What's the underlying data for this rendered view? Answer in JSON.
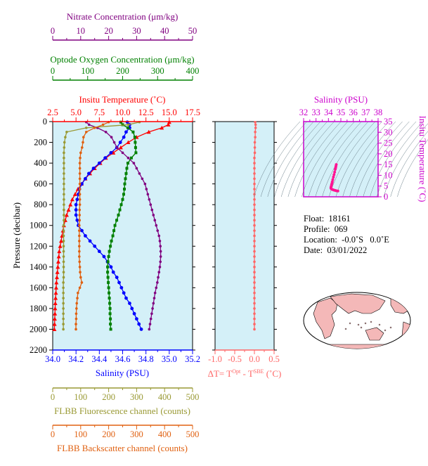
{
  "colors": {
    "temperature": "#ff0000",
    "salinity": "#0000ff",
    "oxygen": "#008000",
    "nitrate": "#800080",
    "fluorescence": "#999933",
    "backscatter": "#e06010",
    "delta_t": "#ff6666",
    "tsal_axis": "#cc00cc",
    "ts_points": "#ff1493",
    "plot_bg": "#d4f0f8",
    "land": "#f4b8b8"
  },
  "info": {
    "float_label": "Float:",
    "float_value": "18161",
    "profile_label": "Profile:",
    "profile_value": "069",
    "location_label": "Location:",
    "location_value": "-0.0˚S   0.0˚E",
    "date_label": "Date:",
    "date_value": "03/01/2022"
  },
  "chart_data": [
    {
      "type": "line",
      "panel": "main-profile",
      "ylabel": "Pressure (decibar)",
      "ylim": [
        2200,
        0
      ],
      "yticks": [
        "0",
        "200",
        "400",
        "600",
        "800",
        "1000",
        "1200",
        "1400",
        "1600",
        "1800",
        "2000",
        "2200"
      ],
      "y": [
        5,
        30,
        60,
        100,
        150,
        200,
        250,
        300,
        350,
        400,
        450,
        500,
        550,
        600,
        650,
        700,
        750,
        800,
        850,
        900,
        950,
        1000,
        1050,
        1100,
        1150,
        1200,
        1250,
        1300,
        1350,
        1400,
        1450,
        1500,
        1550,
        1600,
        1650,
        1700,
        1750,
        1800,
        1850,
        1900,
        1950,
        2000
      ],
      "axes": {
        "temperature": {
          "label": "Insitu Temperature (˚C)",
          "ticks": [
            "2.5",
            "5.0",
            "7.5",
            "10.0",
            "12.5",
            "15.0",
            "17.5"
          ],
          "range": [
            2.5,
            17.5
          ]
        },
        "salinity": {
          "label": "Salinity (PSU)",
          "ticks": [
            "34.0",
            "34.2",
            "34.4",
            "34.6",
            "34.8",
            "35.0",
            "35.2"
          ],
          "range": [
            34.0,
            35.2
          ]
        },
        "oxygen": {
          "label": "Optode Oxygen Concentration (μm/kg)",
          "ticks": [
            "0",
            "100",
            "200",
            "300",
            "400"
          ],
          "range": [
            0,
            400
          ]
        },
        "nitrate": {
          "label": "Nitrate Concentration (μm/kg)",
          "ticks": [
            "0",
            "10",
            "20",
            "30",
            "40",
            "50"
          ],
          "range": [
            0,
            50
          ]
        },
        "fluorescence": {
          "label": "FLBB Fluorescence channel (counts)",
          "ticks": [
            "0",
            "100",
            "200",
            "300",
            "400",
            "500"
          ],
          "range": [
            0,
            500
          ]
        },
        "backscatter": {
          "label": "FLBB Backscatter channel (counts)",
          "ticks": [
            "0",
            "100",
            "200",
            "300",
            "400",
            "500"
          ],
          "range": [
            0,
            500
          ]
        }
      },
      "series": [
        {
          "key": "temperature",
          "values": [
            15.0,
            14.9,
            14.2,
            12.8,
            11.5,
            10.6,
            9.8,
            9.0,
            8.2,
            7.6,
            7.0,
            6.5,
            6.0,
            5.6,
            5.2,
            4.9,
            4.6,
            4.4,
            4.2,
            4.0,
            3.85,
            3.7,
            3.6,
            3.5,
            3.4,
            3.3,
            3.2,
            3.15,
            3.1,
            3.05,
            3.0,
            2.95,
            2.9,
            2.87,
            2.84,
            2.81,
            2.78,
            2.76,
            2.74,
            2.72,
            2.7,
            2.68
          ]
        },
        {
          "key": "salinity",
          "values": [
            34.64,
            34.66,
            34.66,
            34.63,
            34.61,
            34.58,
            34.55,
            34.5,
            34.45,
            34.4,
            34.35,
            34.31,
            34.28,
            34.25,
            34.23,
            34.22,
            34.21,
            34.2,
            34.2,
            34.2,
            34.21,
            34.22,
            34.25,
            34.28,
            34.32,
            34.36,
            34.4,
            34.44,
            34.47,
            34.5,
            34.52,
            34.55,
            34.57,
            34.59,
            34.61,
            34.63,
            34.66,
            34.68,
            34.7,
            34.72,
            34.74,
            34.76
          ]
        },
        {
          "key": "oxygen",
          "values": [
            195,
            200,
            215,
            230,
            235,
            236,
            237,
            238,
            225,
            215,
            212,
            210,
            208,
            206,
            205,
            203,
            200,
            196,
            192,
            188,
            183,
            178,
            175,
            172,
            168,
            165,
            162,
            160,
            158,
            157,
            157,
            158,
            159,
            160,
            161,
            162,
            163,
            164,
            164,
            165,
            165,
            166
          ]
        },
        {
          "key": "nitrate",
          "values": [
            12,
            13,
            16,
            19,
            21,
            22,
            23,
            25,
            27,
            29,
            30,
            31,
            32,
            33,
            33.5,
            34,
            34.5,
            35,
            35.5,
            36,
            36.5,
            37,
            37.5,
            38,
            38.3,
            38.5,
            38.6,
            38.6,
            38.5,
            38.3,
            38,
            37.7,
            37.4,
            37,
            36.6,
            36.3,
            36,
            35.7,
            35.4,
            35.1,
            34.8,
            34.5
          ]
        },
        {
          "key": "fluorescence",
          "values": [
            310,
            270,
            120,
            50,
            45,
            42,
            41,
            40,
            40,
            40,
            40,
            40,
            40,
            40,
            40,
            40,
            40,
            40,
            40,
            40,
            40,
            39,
            39,
            39,
            39,
            39,
            39,
            39,
            39,
            39,
            39,
            39,
            38,
            38,
            38,
            38,
            38,
            38,
            38,
            38,
            38,
            38
          ]
        },
        {
          "key": "backscatter",
          "values": [
            200,
            180,
            150,
            120,
            110,
            108,
            105,
            100,
            98,
            97,
            97,
            97,
            97,
            97,
            97,
            97,
            97,
            97,
            96,
            96,
            96,
            95,
            95,
            95,
            95,
            95,
            95,
            95,
            96,
            97,
            98,
            100,
            104,
            97,
            90,
            88,
            86,
            85,
            84,
            84,
            83,
            83
          ]
        }
      ]
    },
    {
      "type": "line",
      "panel": "delta-t",
      "xlabel": "ΔT= Tᴼᵖᵗ - Tˢᴮᴱ (˚C)",
      "xlabel_main": "ΔT= T",
      "xlabel_sup1": "Opt",
      "xlabel_mid": " - T",
      "xlabel_sup2": "SBE",
      "xlabel_end": " (˚C)",
      "xticks": [
        "-1.0",
        "-0.5",
        "0.0",
        "0.5"
      ],
      "xlim": [
        -1.0,
        0.5
      ],
      "ylim": [
        2200,
        0
      ],
      "y": [
        5,
        30,
        60,
        100,
        150,
        200,
        250,
        300,
        350,
        400,
        450,
        500,
        550,
        600,
        650,
        700,
        750,
        800,
        850,
        900,
        950,
        1000,
        1050,
        1100,
        1150,
        1200,
        1250,
        1300,
        1350,
        1400,
        1450,
        1500,
        1550,
        1600,
        1650,
        1700,
        1750,
        1800,
        1850,
        1900,
        1950,
        2000
      ],
      "values": [
        0.02,
        0.03,
        0.03,
        0.02,
        0.02,
        0.01,
        0.01,
        0.01,
        0.0,
        0.0,
        0.0,
        0.0,
        0.0,
        0.0,
        0.0,
        0.0,
        0.0,
        0.0,
        0.0,
        0.0,
        0.0,
        0.0,
        0.0,
        0.0,
        0.0,
        0.0,
        0.0,
        0.0,
        0.0,
        0.0,
        0.0,
        0.0,
        0.0,
        0.0,
        0.0,
        0.0,
        0.0,
        0.0,
        0.0,
        0.0,
        0.0,
        0.0
      ]
    },
    {
      "type": "scatter",
      "panel": "ts-diagram",
      "xlabel": "Salinity (PSU)",
      "ylabel": "Insitu Temperature (˚C)",
      "xticks": [
        "32",
        "33",
        "34",
        "35",
        "36",
        "37",
        "38"
      ],
      "yticks": [
        "0",
        "5",
        "10",
        "15",
        "20",
        "25",
        "30",
        "35"
      ],
      "xlim": [
        32,
        38
      ],
      "ylim": [
        0,
        35
      ],
      "points": [
        [
          34.63,
          15.0
        ],
        [
          34.6,
          14.2
        ],
        [
          34.58,
          13.5
        ],
        [
          34.55,
          12.8
        ],
        [
          34.5,
          11.5
        ],
        [
          34.45,
          10.3
        ],
        [
          34.4,
          9.2
        ],
        [
          34.35,
          8.0
        ],
        [
          34.31,
          7.0
        ],
        [
          34.28,
          6.2
        ],
        [
          34.25,
          5.6
        ],
        [
          34.23,
          5.0
        ],
        [
          34.2,
          4.4
        ],
        [
          34.2,
          4.0
        ],
        [
          34.25,
          3.6
        ],
        [
          34.35,
          3.3
        ],
        [
          34.45,
          3.1
        ],
        [
          34.55,
          2.95
        ],
        [
          34.65,
          2.8
        ],
        [
          34.76,
          2.68
        ]
      ]
    }
  ]
}
